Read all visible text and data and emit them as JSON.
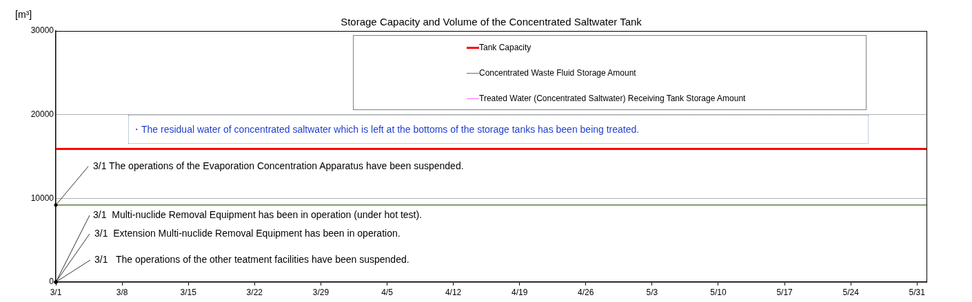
{
  "chart_data": {
    "type": "line",
    "title": "Storage Capacity and Volume of the Concentrated Saltwater Tank",
    "ylabel": "[m³]",
    "x": [
      "--03-01",
      "--06-01"
    ],
    "series": [
      {
        "name": "Tank Capacity",
        "color": "#ff0000",
        "values": [
          15900,
          15900
        ]
      },
      {
        "name": "Concentrated Waste Fluid Storage Amount",
        "color": "#5a7a3c",
        "values": [
          9200,
          9200
        ]
      },
      {
        "name": "Treated Water (Concentrated Saltwater) Receiving Tank Storage Amount",
        "color": "#ff66ff",
        "values": [
          null,
          null
        ]
      }
    ],
    "xlim": [
      "--03-01",
      "--06-01"
    ],
    "xticks": [
      {
        "value": "--03-01",
        "label": "3/1"
      },
      {
        "value": "--03-08",
        "label": "3/8"
      },
      {
        "value": "--03-15",
        "label": "3/15"
      },
      {
        "value": "--03-22",
        "label": "3/22"
      },
      {
        "value": "--03-29",
        "label": "3/29"
      },
      {
        "value": "--04-05",
        "label": "4/5"
      },
      {
        "value": "--04-12",
        "label": "4/12"
      },
      {
        "value": "--04-19",
        "label": "4/19"
      },
      {
        "value": "--04-26",
        "label": "4/26"
      },
      {
        "value": "--05-03",
        "label": "5/3"
      },
      {
        "value": "--05-10",
        "label": "5/10"
      },
      {
        "value": "--05-17",
        "label": "5/17"
      },
      {
        "value": "--05-24",
        "label": "5/24"
      },
      {
        "value": "--05-31",
        "label": "5/31"
      }
    ],
    "ylim": [
      0,
      30000
    ],
    "yticks": [
      0,
      10000,
      20000,
      30000
    ],
    "grid": "y",
    "legend": "top right",
    "marker": "none",
    "line_style": "solid",
    "annotations": [
      "・The residual water of concentrated saltwater which is left at the bottoms of the storage tanks has been being treated.",
      {
        "text": "3/1 The operations of the Evaporation Concentration Apparatus have been suspended.",
        "x": "--03-01",
        "y": 9200
      },
      "3/1  Multi-nuclide Removal Equipment has been in operation (under hot test).",
      "3/1  Extension Multi-nuclide Removal Equipment has been in operation.",
      "3/1   The operations of the other teatment facilities have been suspended."
    ]
  }
}
